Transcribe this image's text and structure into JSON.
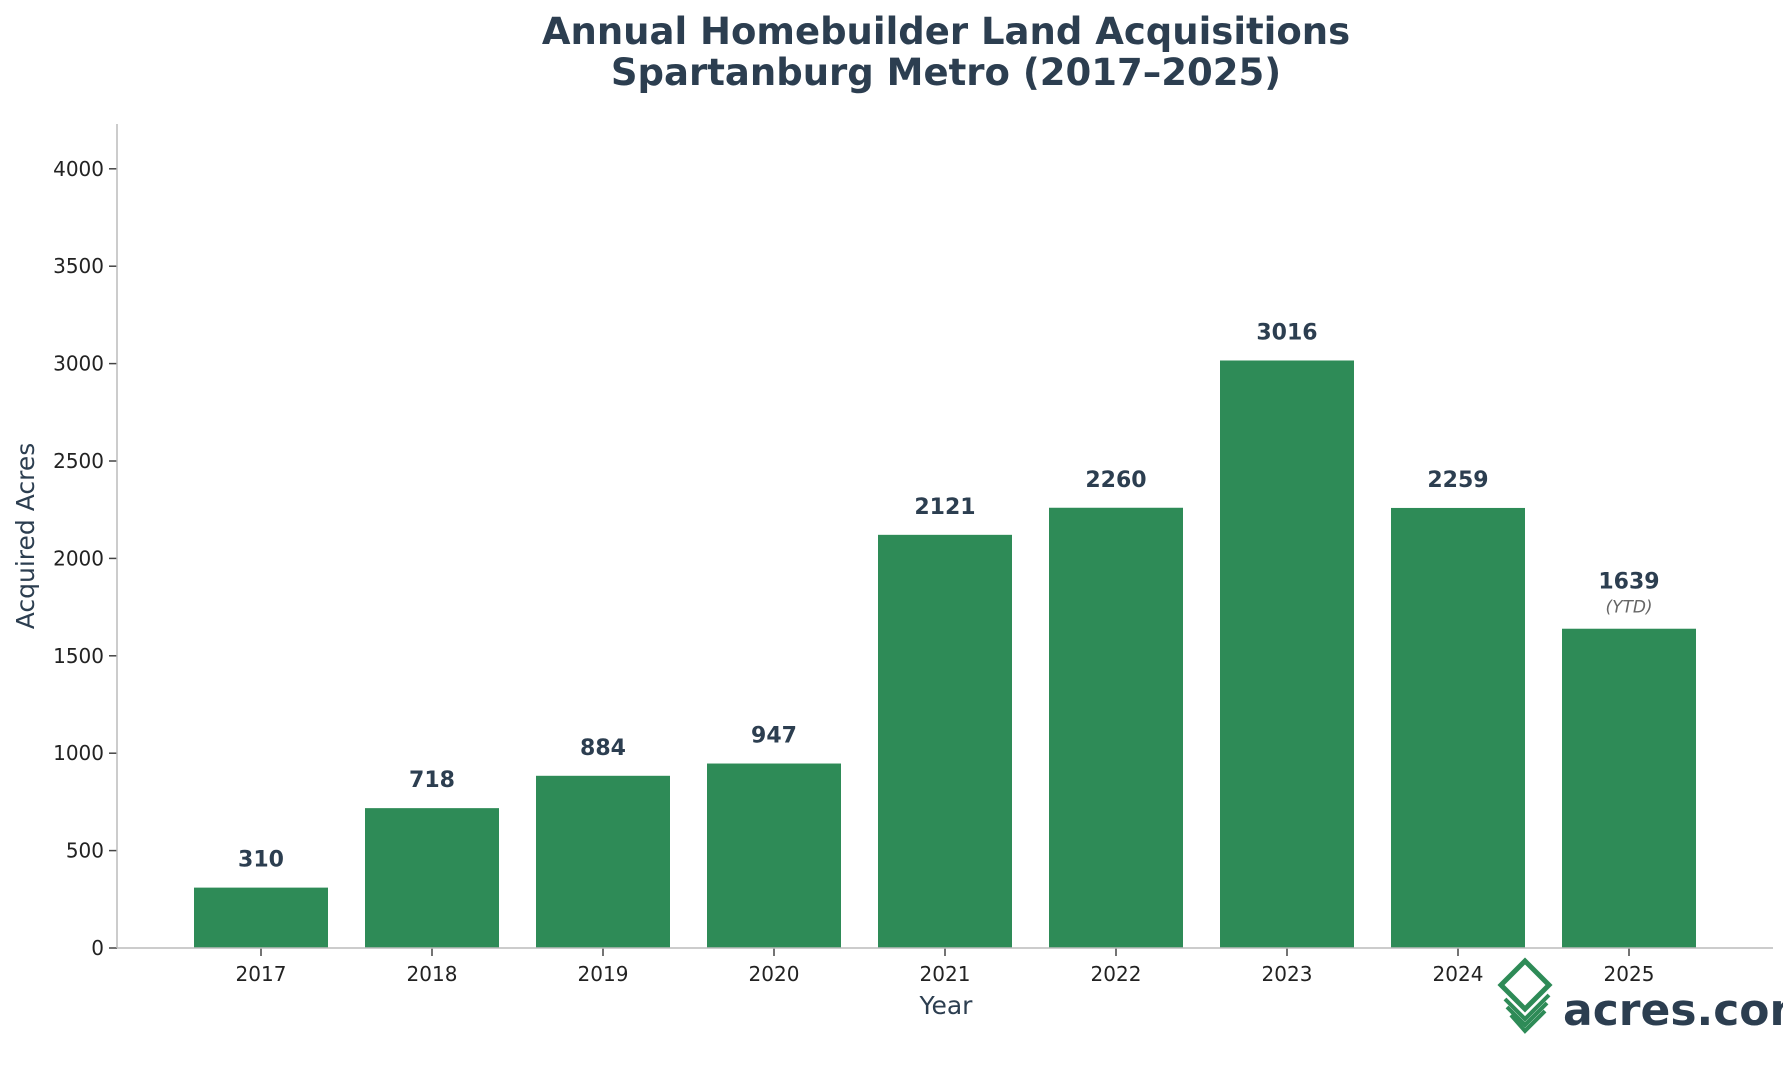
{
  "chart_data": {
    "type": "bar",
    "title": [
      "Annual Homebuilder Land Acquisitions",
      "Spartanburg Metro (2017–2025)"
    ],
    "xlabel": "Year",
    "ylabel": "Acquired Acres",
    "categories": [
      "2017",
      "2018",
      "2019",
      "2020",
      "2021",
      "2022",
      "2023",
      "2024",
      "2025"
    ],
    "values": [
      310,
      718,
      884,
      947,
      2121,
      2260,
      3016,
      2259,
      1639
    ],
    "data_labels": [
      "310",
      "718",
      "884",
      "947",
      "2121",
      "2260",
      "3016",
      "2259",
      "1639"
    ],
    "annotations": [
      {
        "category": "2025",
        "text": "(YTD)"
      }
    ],
    "ylim": [
      0,
      4230
    ],
    "yticks": [
      0,
      500,
      1000,
      1500,
      2000,
      2500,
      3000,
      3500,
      4000
    ],
    "grid": false,
    "bar_color": "#2e8b57",
    "text_color": "#2c3e50"
  },
  "logo": {
    "text": "acres.com",
    "color": "#2e8b57"
  }
}
